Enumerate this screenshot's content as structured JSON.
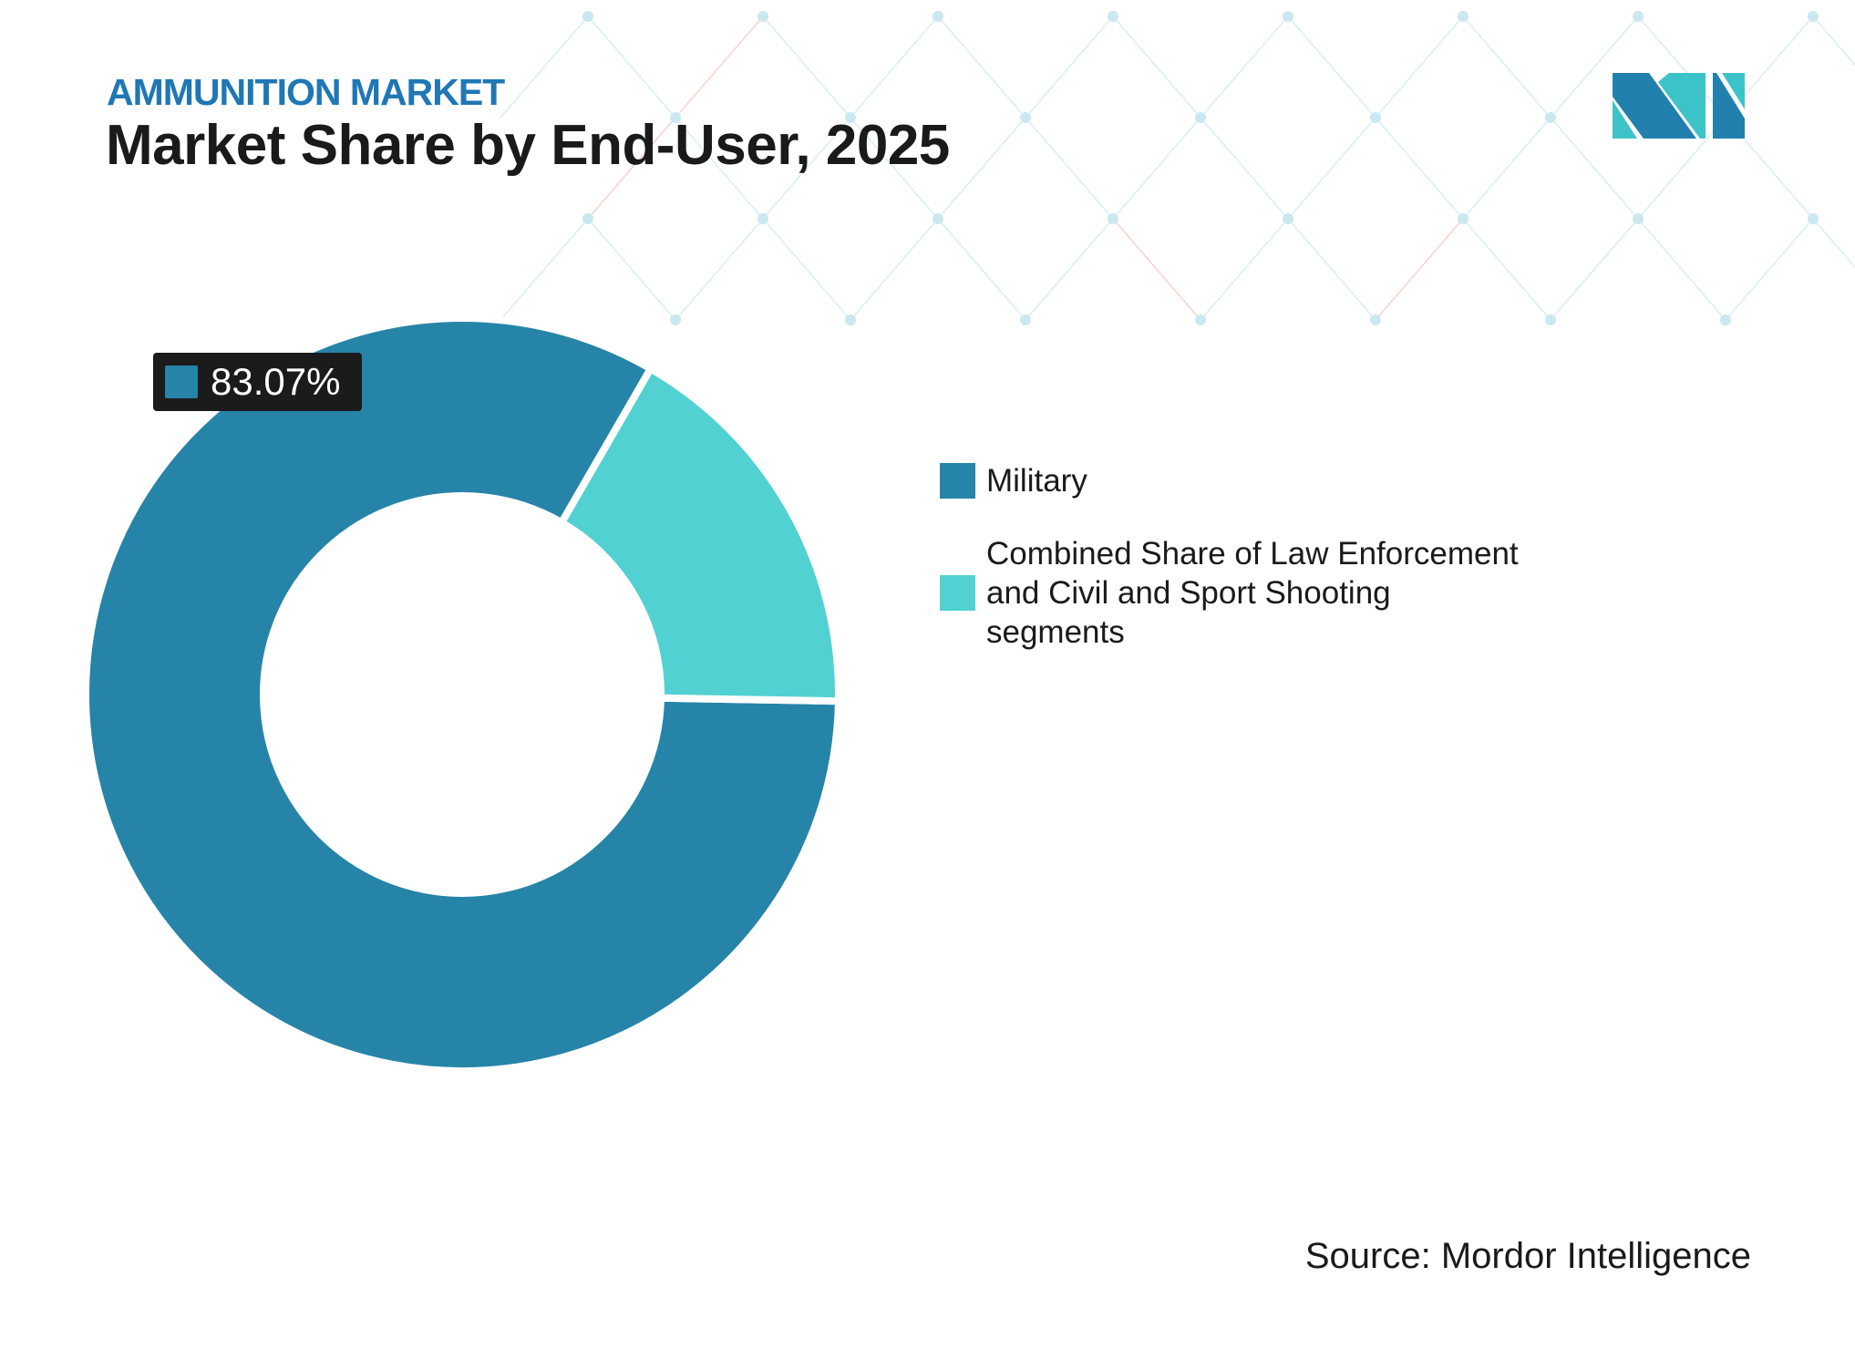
{
  "header": {
    "kicker": "AMMUNITION MARKET",
    "title": "Market Share by End-User, 2025"
  },
  "logo": {
    "name": "mordor-intelligence-logo",
    "colors": [
      "#2180ad",
      "#3cc3c8"
    ]
  },
  "chart_data": {
    "type": "pie",
    "variant": "donut",
    "categories": [
      "Military",
      "Combined Share of Law Enforcement and Civil and Sport Shooting segments"
    ],
    "values": [
      83.07,
      16.93
    ],
    "unit": "%",
    "colors": [
      "#2684a8",
      "#52d1d3"
    ],
    "data_labels": [
      {
        "category": "Military",
        "text": "83.07%"
      }
    ],
    "legend_placement": "right"
  },
  "source": "Source: Mordor Intelligence"
}
